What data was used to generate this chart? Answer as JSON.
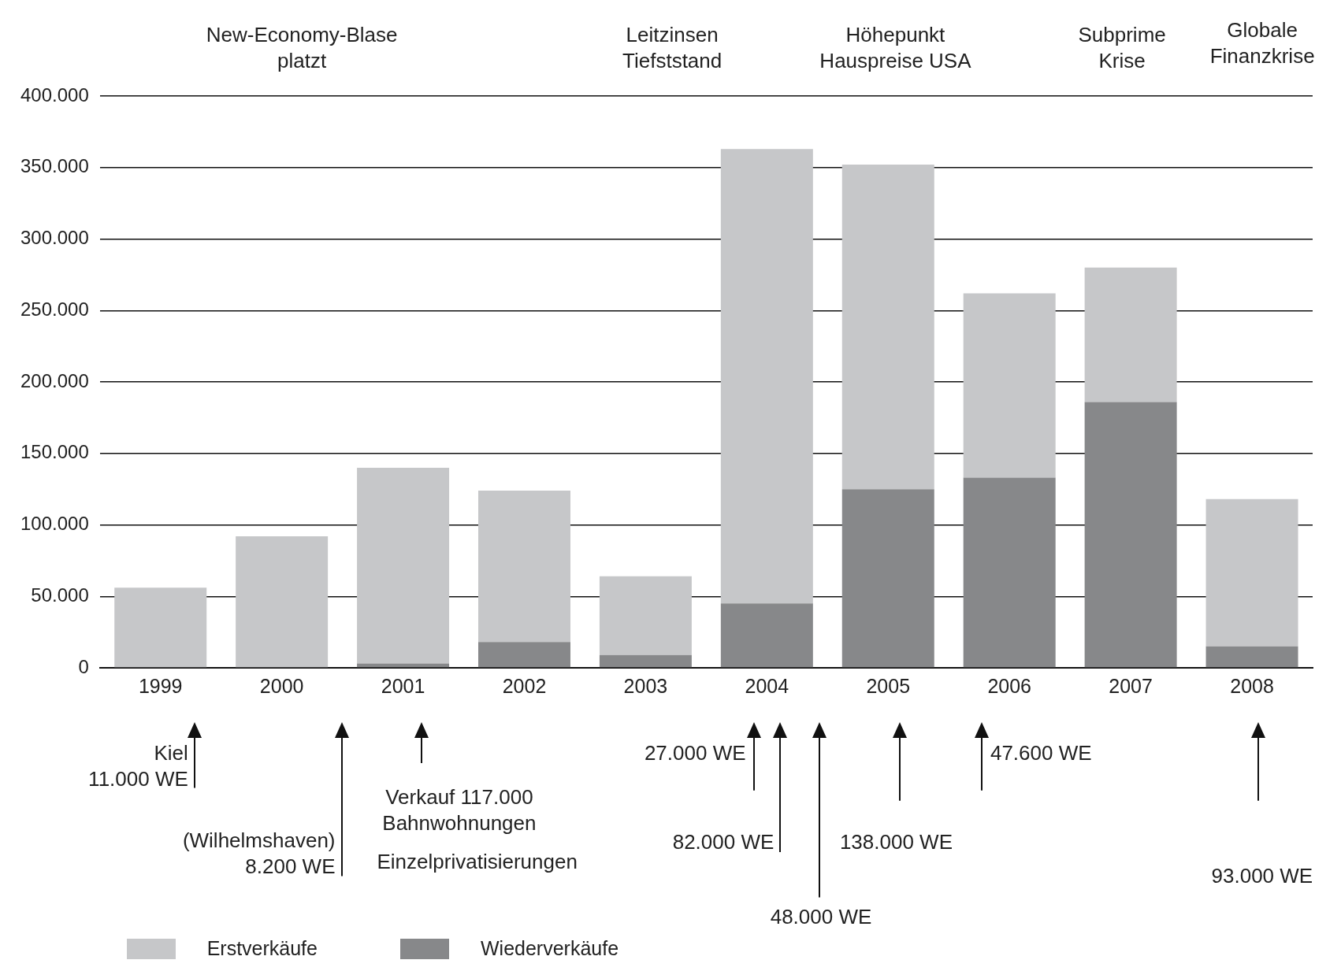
{
  "chart_data": {
    "type": "bar",
    "stacked": true,
    "categories": [
      "1999",
      "2000",
      "2001",
      "2002",
      "2003",
      "2004",
      "2005",
      "2006",
      "2007",
      "2008"
    ],
    "series": [
      {
        "name": "Wiederverkäufe",
        "color": "#87888a",
        "values": [
          0,
          0,
          3000,
          18000,
          9000,
          45000,
          125000,
          133000,
          186000,
          15000
        ]
      },
      {
        "name": "Erstverkäufe",
        "color": "#c6c7c9",
        "values": [
          56000,
          92000,
          137000,
          106000,
          55000,
          318000,
          227000,
          129000,
          94000,
          103000
        ]
      }
    ],
    "ylim": [
      0,
      400000
    ],
    "yticks": [
      {
        "value": 0,
        "label": "0"
      },
      {
        "value": 50000,
        "label": "50.000"
      },
      {
        "value": 100000,
        "label": "100.000"
      },
      {
        "value": 150000,
        "label": "150.000"
      },
      {
        "value": 200000,
        "label": "200.000"
      },
      {
        "value": 250000,
        "label": "250.000"
      },
      {
        "value": 300000,
        "label": "300.000"
      },
      {
        "value": 350000,
        "label": "350.000"
      },
      {
        "value": 400000,
        "label": "400.000"
      }
    ],
    "grid": "y",
    "legend": "bottom left",
    "annotations": [
      "New-Economy-Blase\nplatzt",
      "Leitzinsen\nTiefststand",
      "Höhepunkt\nHauspreise USA",
      "Subprime\nKrise",
      "Globale\nFinanzkrise",
      "Kiel\n11.000 WE",
      "(Wilhelmshaven)\n8.200 WE",
      "Verkauf 117.000\nBahnwohnungen",
      "Einzelprivatisierungen",
      "27.000 WE",
      "82.000 WE",
      "48.000 WE",
      "138.000 WE",
      "47.600 WE",
      "93.000 WE"
    ]
  }
}
